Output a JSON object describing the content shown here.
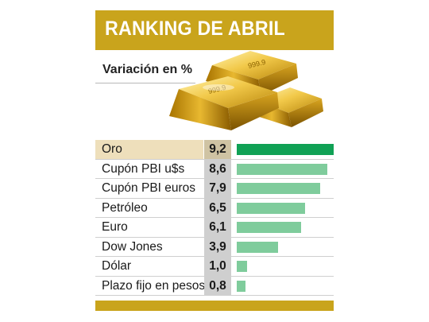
{
  "header": {
    "title": "RANKING DE ABRIL",
    "subtitle": "Variación en %"
  },
  "illustration": {
    "name": "gold-bars-image",
    "ingot_marking": "999.9"
  },
  "colors": {
    "band": "#c9a41c",
    "highlight_bar": "#10a155",
    "bar": "#7fcc9c",
    "highlight_row": "#eedfbb"
  },
  "rows": [
    {
      "label": "Oro",
      "value_text": "9,2"
    },
    {
      "label": "Cupón PBI u$s",
      "value_text": "8,6"
    },
    {
      "label": "Cupón PBI euros",
      "value_text": "7,9"
    },
    {
      "label": "Petróleo",
      "value_text": "6,5"
    },
    {
      "label": "Euro",
      "value_text": "6,1"
    },
    {
      "label": "Dow Jones",
      "value_text": "3,9"
    },
    {
      "label": "Dólar",
      "value_text": "1,0"
    },
    {
      "label": "Plazo fijo en pesos",
      "value_text": "0,8"
    }
  ],
  "chart_data": {
    "type": "bar",
    "orientation": "horizontal",
    "title": "RANKING DE ABRIL",
    "subtitle": "Variación en %",
    "categories": [
      "Oro",
      "Cupón PBI u$s",
      "Cupón PBI euros",
      "Petróleo",
      "Euro",
      "Dow Jones",
      "Dólar",
      "Plazo fijo en pesos"
    ],
    "values": [
      9.2,
      8.6,
      7.9,
      6.5,
      6.1,
      3.9,
      1.0,
      0.8
    ],
    "xlim": [
      0,
      9.2
    ],
    "highlighted_category": "Oro",
    "grid": false,
    "legend": "none"
  }
}
